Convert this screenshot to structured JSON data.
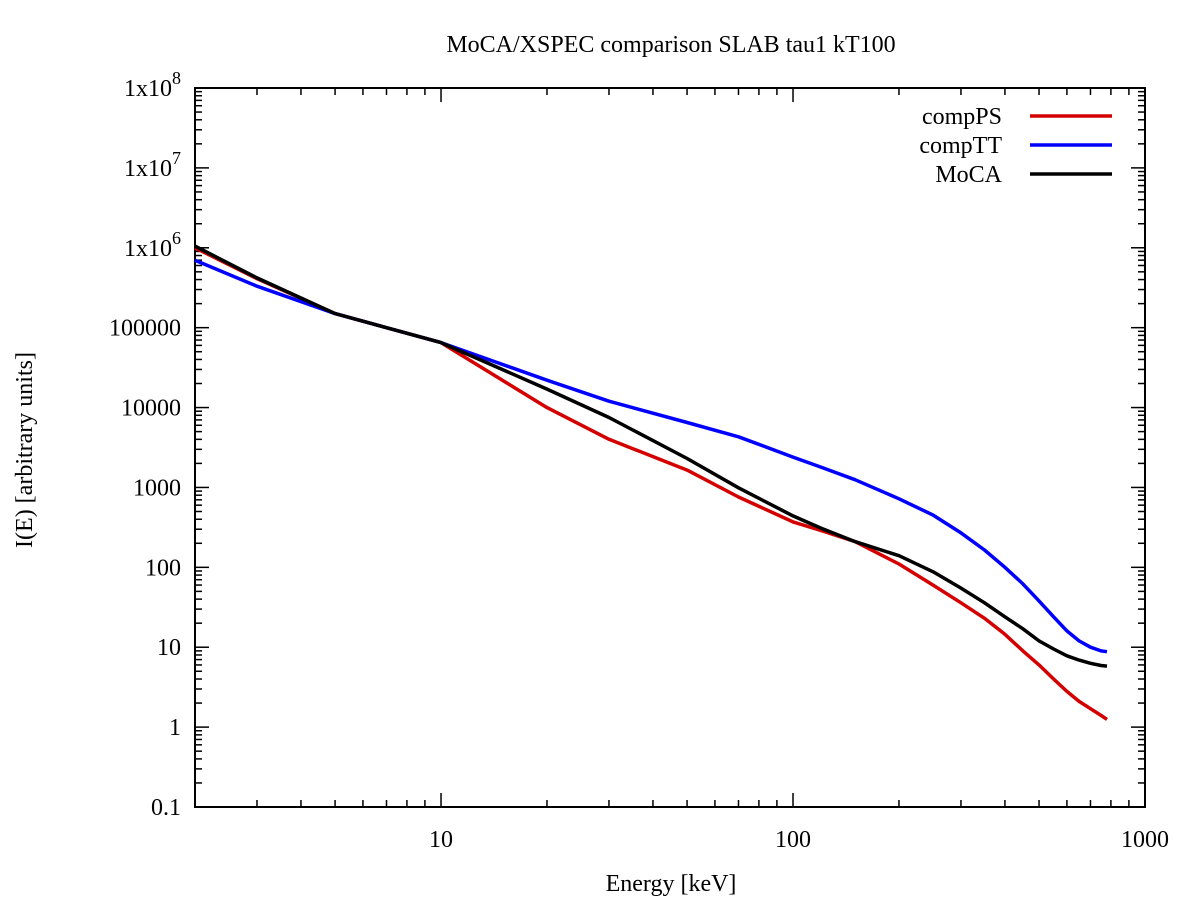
{
  "chart_data": {
    "type": "line",
    "title": "MoCA/XSPEC comparison SLAB tau1 kT100",
    "xlabel": "Energy [keV]",
    "ylabel": "I(E) [arbitrary units]",
    "xscale": "log",
    "yscale": "log",
    "xlim": [
      2,
      1000
    ],
    "ylim": [
      0.1,
      100000000
    ],
    "grid": false,
    "legend_position": "top-right",
    "x_ticks": [
      {
        "value": 10,
        "label": "10"
      },
      {
        "value": 100,
        "label": "100"
      },
      {
        "value": 1000,
        "label": "1000"
      }
    ],
    "y_ticks": [
      {
        "value": 0.1,
        "label": "0.1"
      },
      {
        "value": 1,
        "label": "1"
      },
      {
        "value": 10,
        "label": "10"
      },
      {
        "value": 100,
        "label": "100"
      },
      {
        "value": 1000,
        "label": "1000"
      },
      {
        "value": 10000,
        "label": "10000"
      },
      {
        "value": 100000,
        "label": "100000"
      },
      {
        "value": 1000000,
        "label": "1x10",
        "exp": "6"
      },
      {
        "value": 10000000,
        "label": "1x10",
        "exp": "7"
      },
      {
        "value": 100000000,
        "label": "1x10",
        "exp": "8"
      }
    ],
    "series": [
      {
        "name": "compPS",
        "color": "#d40000",
        "x": [
          2,
          3,
          5,
          10,
          20,
          30,
          50,
          70,
          100,
          120,
          150,
          200,
          250,
          300,
          350,
          400,
          450,
          500,
          550,
          600,
          650,
          700,
          750,
          780
        ],
        "y": [
          1000000,
          410000,
          150000,
          65000,
          10000,
          4000,
          1650,
          760,
          370,
          290,
          210,
          110,
          60,
          36,
          23,
          14.5,
          9,
          6,
          4,
          2.8,
          2.1,
          1.7,
          1.4,
          1.25
        ]
      },
      {
        "name": "compTT",
        "color": "#0000ff",
        "x": [
          2,
          3,
          5,
          10,
          20,
          30,
          50,
          70,
          100,
          120,
          150,
          200,
          250,
          300,
          350,
          400,
          450,
          500,
          550,
          600,
          650,
          700,
          750,
          780
        ],
        "y": [
          700000,
          330000,
          150000,
          65000,
          22000,
          12000,
          6500,
          4300,
          2400,
          1800,
          1250,
          720,
          450,
          270,
          165,
          100,
          62,
          38,
          24,
          16,
          12,
          10,
          9,
          8.8
        ]
      },
      {
        "name": "MoCA",
        "color": "#000000",
        "x": [
          2,
          3,
          5,
          10,
          20,
          30,
          50,
          70,
          100,
          120,
          150,
          200,
          250,
          300,
          350,
          400,
          450,
          500,
          550,
          600,
          650,
          700,
          750,
          780
        ],
        "y": [
          1050000,
          420000,
          150000,
          65000,
          17000,
          7500,
          2300,
          990,
          440,
          310,
          210,
          140,
          88,
          55,
          36,
          24,
          17,
          12,
          9.5,
          7.8,
          6.9,
          6.3,
          5.9,
          5.8
        ]
      }
    ]
  }
}
